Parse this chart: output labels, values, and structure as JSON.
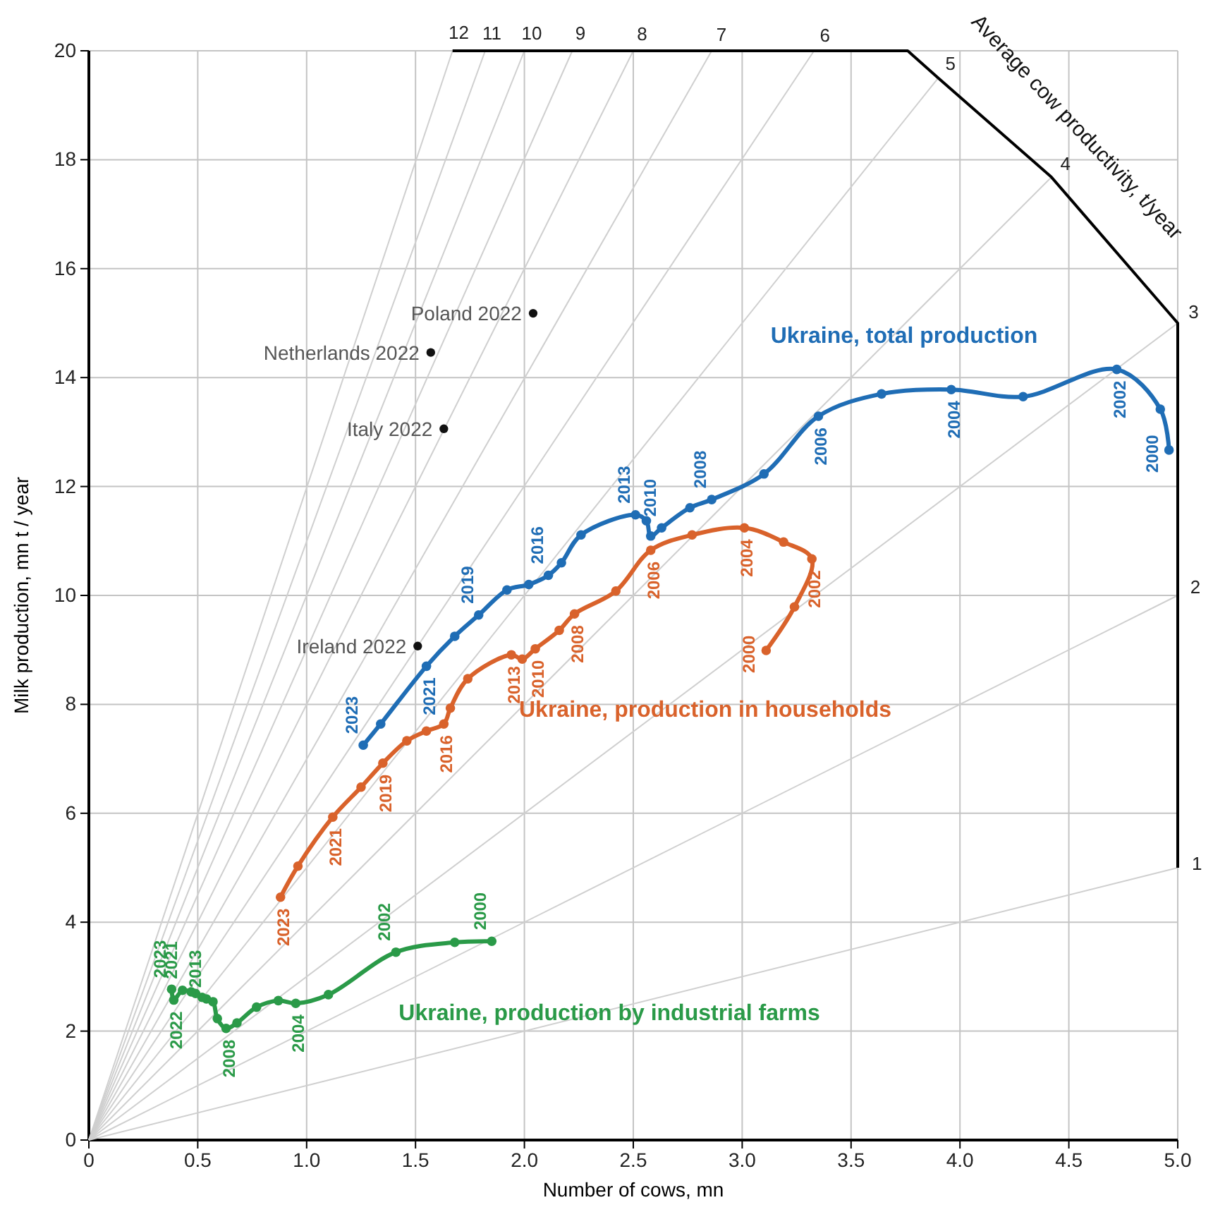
{
  "chart_data": {
    "type": "line",
    "xlabel": "Number of cows, mn",
    "ylabel": "Milk production, mn t / year",
    "annotations": [
      "Average cow productivity, t/year",
      {
        "text": "1",
        "x": 5,
        "y": 5
      },
      {
        "text": "2",
        "x": 5,
        "y": 10
      },
      {
        "text": "3",
        "x": 5,
        "y": 15
      },
      {
        "text": "4",
        "x": 4.42,
        "y": 17.68
      },
      {
        "text": "5",
        "x": 3.9,
        "y": 19.5
      },
      {
        "text": "6",
        "x": 3.33,
        "y": 20
      },
      {
        "text": "7",
        "x": 2.86,
        "y": 20
      },
      {
        "text": "8",
        "x": 2.5,
        "y": 20
      },
      {
        "text": "9",
        "x": 2.22,
        "y": 20
      },
      {
        "text": "10",
        "x": 2,
        "y": 20
      },
      {
        "text": "11",
        "x": 1.82,
        "y": 20
      },
      {
        "text": "12",
        "x": 1.67,
        "y": 20
      },
      {
        "text": "2000",
        "x": 4.96,
        "y": 12.67
      },
      {
        "text": "2002",
        "x": 4.72,
        "y": 14.15
      },
      {
        "text": "2004",
        "x": 3.96,
        "y": 13.78
      },
      {
        "text": "2006",
        "x": 3.35,
        "y": 13.29
      },
      {
        "text": "2008",
        "x": 2.86,
        "y": 11.76
      },
      {
        "text": "2010",
        "x": 2.63,
        "y": 11.24
      },
      {
        "text": "2013",
        "x": 2.51,
        "y": 11.48
      },
      {
        "text": "2016",
        "x": 2.11,
        "y": 10.37
      },
      {
        "text": "2019",
        "x": 1.79,
        "y": 9.64
      },
      {
        "text": "2021",
        "x": 1.55,
        "y": 8.7
      },
      {
        "text": "2023",
        "x": 1.26,
        "y": 7.25
      },
      {
        "text": "2000",
        "x": 3.11,
        "y": 8.99
      },
      {
        "text": "2002",
        "x": 3.32,
        "y": 10.67
      },
      {
        "text": "2004",
        "x": 3.01,
        "y": 11.24
      },
      {
        "text": "2006",
        "x": 2.58,
        "y": 10.83
      },
      {
        "text": "2008",
        "x": 2.23,
        "y": 9.66
      },
      {
        "text": "2010",
        "x": 2.05,
        "y": 9.02
      },
      {
        "text": "2013",
        "x": 1.94,
        "y": 8.91
      },
      {
        "text": "2016",
        "x": 1.63,
        "y": 7.64
      },
      {
        "text": "2019",
        "x": 1.35,
        "y": 6.92
      },
      {
        "text": "2021",
        "x": 1.12,
        "y": 5.93
      },
      {
        "text": "2023",
        "x": 0.88,
        "y": 4.46
      },
      {
        "text": "2000",
        "x": 1.85,
        "y": 3.65
      },
      {
        "text": "2002",
        "x": 1.41,
        "y": 3.45
      },
      {
        "text": "2004",
        "x": 0.95,
        "y": 2.51
      },
      {
        "text": "2008",
        "x": 0.63,
        "y": 2.05
      },
      {
        "text": "2013",
        "x": 0.54,
        "y": 2.59
      },
      {
        "text": "2021",
        "x": 0.43,
        "y": 2.75
      },
      {
        "text": "2022",
        "x": 0.39,
        "y": 2.57
      },
      {
        "text": "2023",
        "x": 0.38,
        "y": 2.77
      },
      {
        "text": "Poland 2022",
        "x": 2.04,
        "y": 15.18
      },
      {
        "text": "Netherlands 2022",
        "x": 1.57,
        "y": 14.46
      },
      {
        "text": "Italy 2022",
        "x": 1.63,
        "y": 13.06
      },
      {
        "text": "Ireland 2022",
        "x": 1.51,
        "y": 9.07
      }
    ],
    "xlim": [
      0,
      5
    ],
    "ylim": [
      0,
      20
    ],
    "xticks": [
      0,
      0.5,
      {
        "value": 1,
        "label": "1.0"
      },
      1.5,
      {
        "value": 2,
        "label": "2.0"
      },
      2.5,
      {
        "value": 3,
        "label": "3.0"
      },
      3.5,
      {
        "value": 4,
        "label": "4.0"
      },
      4.5,
      {
        "value": 5,
        "label": "5.0"
      }
    ],
    "yticks": [
      0,
      2,
      4,
      6,
      8,
      10,
      12,
      14,
      16,
      18,
      20
    ],
    "grid": true,
    "marker": "circle",
    "line_style": "solid",
    "series": [
      {
        "color": "#cfcfcf",
        "marker": "none",
        "x": [
          0,
          5
        ],
        "values": [
          0,
          5
        ]
      },
      {
        "color": "#cfcfcf",
        "marker": "none",
        "x": [
          0,
          5
        ],
        "values": [
          0,
          10
        ]
      },
      {
        "color": "#cfcfcf",
        "marker": "none",
        "x": [
          0,
          5
        ],
        "values": [
          0,
          15
        ]
      },
      {
        "color": "#cfcfcf",
        "marker": "none",
        "x": [
          0,
          4.42
        ],
        "values": [
          0,
          17.68
        ]
      },
      {
        "color": "#cfcfcf",
        "marker": "none",
        "x": [
          0,
          3.9
        ],
        "values": [
          0,
          19.5
        ]
      },
      {
        "color": "#cfcfcf",
        "marker": "none",
        "x": [
          0,
          3.33
        ],
        "values": [
          0,
          20
        ]
      },
      {
        "color": "#cfcfcf",
        "marker": "none",
        "x": [
          0,
          2.86
        ],
        "values": [
          0,
          20
        ]
      },
      {
        "color": "#cfcfcf",
        "marker": "none",
        "x": [
          0,
          2.5
        ],
        "values": [
          0,
          20
        ]
      },
      {
        "color": "#cfcfcf",
        "marker": "none",
        "x": [
          0,
          2.22
        ],
        "values": [
          0,
          20
        ]
      },
      {
        "color": "#cfcfcf",
        "marker": "none",
        "x": [
          0,
          2
        ],
        "values": [
          0,
          20
        ]
      },
      {
        "color": "#cfcfcf",
        "marker": "none",
        "x": [
          0,
          1.82
        ],
        "values": [
          0,
          20
        ]
      },
      {
        "color": "#cfcfcf",
        "marker": "none",
        "x": [
          0,
          1.67
        ],
        "values": [
          0,
          20
        ]
      },
      {
        "color": "#000000",
        "marker": "none",
        "x": [
          1.67,
          3.76,
          3.9,
          4.42,
          5,
          5
        ],
        "values": [
          20,
          20,
          19.5,
          17.68,
          15,
          5
        ]
      },
      {
        "name": "Ukraine, total production",
        "color": "#1f6db5",
        "x": [
          4.96,
          4.92,
          4.72,
          4.29,
          3.96,
          3.64,
          3.35,
          3.1,
          2.86,
          2.76,
          2.63,
          2.58,
          2.56,
          2.51,
          2.26,
          2.17,
          2.11,
          2.02,
          1.92,
          1.79,
          1.68,
          1.55,
          1.34,
          1.26
        ],
        "values": [
          12.67,
          13.42,
          14.15,
          13.65,
          13.78,
          13.7,
          13.29,
          12.23,
          11.76,
          11.61,
          11.24,
          11.09,
          11.37,
          11.48,
          11.11,
          10.6,
          10.37,
          10.2,
          10.1,
          9.64,
          9.25,
          8.7,
          7.64,
          7.25
        ]
      },
      {
        "name": "Ukraine, production in households",
        "color": "#d9622b",
        "x": [
          3.11,
          3.24,
          3.32,
          3.19,
          3.01,
          2.77,
          2.58,
          2.42,
          2.23,
          2.16,
          2.05,
          1.99,
          1.94,
          1.74,
          1.66,
          1.63,
          1.55,
          1.46,
          1.35,
          1.25,
          1.12,
          0.96,
          0.88
        ],
        "values": [
          8.99,
          9.79,
          10.67,
          10.98,
          11.24,
          11.11,
          10.83,
          10.08,
          9.66,
          9.36,
          9.02,
          8.83,
          8.91,
          8.47,
          7.93,
          7.64,
          7.51,
          7.33,
          6.92,
          6.48,
          5.93,
          5.03,
          4.46
        ]
      },
      {
        "name": "Ukraine, production by industrial farms",
        "color": "#2a9a48",
        "x": [
          1.85,
          1.68,
          1.41,
          1.1,
          0.95,
          0.87,
          0.77,
          0.68,
          0.63,
          0.59,
          0.57,
          0.54,
          0.52,
          0.49,
          0.47,
          0.43,
          0.39,
          0.38
        ],
        "values": [
          3.65,
          3.63,
          3.45,
          2.67,
          2.51,
          2.56,
          2.44,
          2.15,
          2.05,
          2.23,
          2.54,
          2.59,
          2.62,
          2.69,
          2.72,
          2.75,
          2.57,
          2.77
        ]
      },
      {
        "type": "scatter",
        "color": "#111111",
        "x": [
          2.04,
          1.57,
          1.63,
          1.51
        ],
        "values": [
          15.18,
          14.46,
          13.06,
          9.07
        ]
      }
    ]
  }
}
